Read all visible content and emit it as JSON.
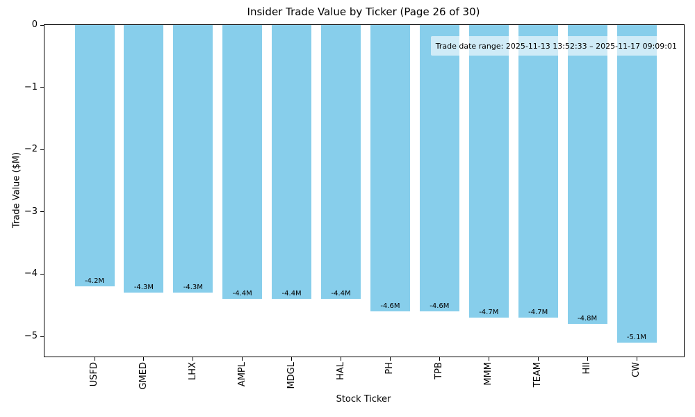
{
  "chart_data": {
    "type": "bar",
    "title": "Insider Trade Value by Ticker (Page 26 of 30)",
    "xlabel": "Stock Ticker",
    "ylabel": "Trade Value ($M)",
    "categories": [
      "USFD",
      "GMED",
      "LHX",
      "AMPL",
      "MDGL",
      "HAL",
      "PH",
      "TPB",
      "MMM",
      "TEAM",
      "HII",
      "CW"
    ],
    "values": [
      -4.2,
      -4.3,
      -4.3,
      -4.4,
      -4.4,
      -4.4,
      -4.6,
      -4.6,
      -4.7,
      -4.7,
      -4.8,
      -5.1
    ],
    "bar_labels": [
      "-4.2M",
      "-4.3M",
      "-4.3M",
      "-4.4M",
      "-4.4M",
      "-4.4M",
      "-4.6M",
      "-4.6M",
      "-4.7M",
      "-4.7M",
      "-4.8M",
      "-5.1M"
    ],
    "y_ticks": [
      "0",
      "−1",
      "−2",
      "−3",
      "−4",
      "−5"
    ],
    "y_tick_values": [
      0,
      -1,
      -2,
      -3,
      -4,
      -5
    ],
    "ylim": [
      -5.33,
      0
    ],
    "annotation": "Trade date range: 2025-11-13 13:52:33 – 2025-11-17 09:09:01",
    "bar_color": "#87CEEB",
    "background_color": "#ffffff",
    "grid": false,
    "legend": null,
    "x_tick_rotation": 90
  }
}
